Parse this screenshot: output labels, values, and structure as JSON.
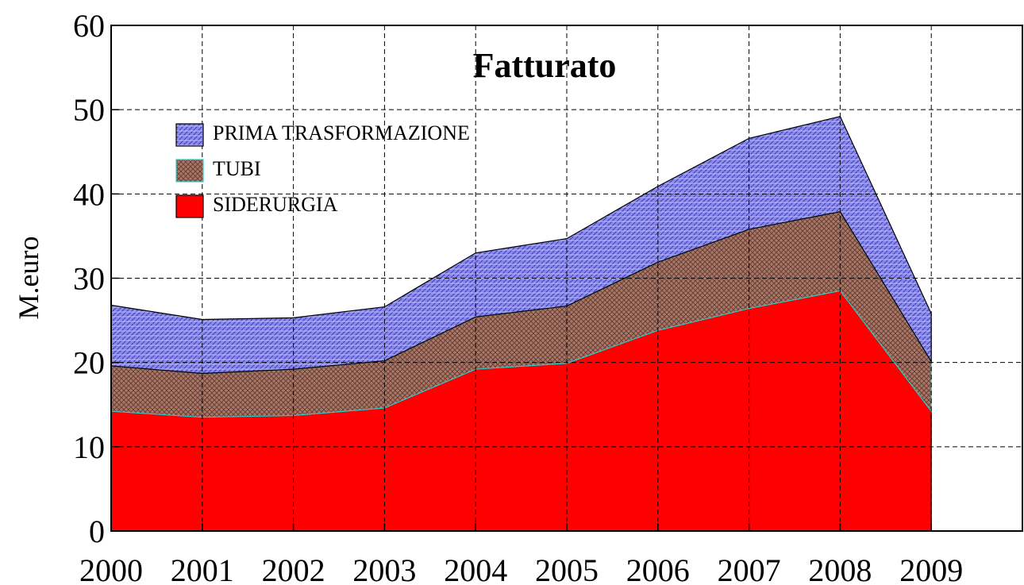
{
  "chart_data": {
    "type": "stacked_area",
    "title": "Fatturato",
    "y_label": "M.euro",
    "x": [
      2000,
      2001,
      2002,
      2003,
      2004,
      2005,
      2006,
      2007,
      2008,
      2009
    ],
    "series": [
      {
        "name": "SIDERURGIA",
        "color": "#ff0000",
        "values": [
          14.2,
          13.5,
          13.7,
          14.6,
          19.2,
          19.9,
          23.8,
          26.4,
          28.5,
          14.2
        ]
      },
      {
        "name": "TUBI",
        "color": "#a87868",
        "values": [
          5.4,
          5.2,
          5.5,
          5.6,
          6.2,
          6.8,
          8.1,
          9.4,
          9.4,
          5.9
        ]
      },
      {
        "name": "PRIMA TRASFORMAZIONE",
        "color": "#8888ee",
        "values": [
          7.2,
          6.4,
          6.1,
          6.4,
          7.6,
          8.0,
          9.0,
          10.8,
          11.3,
          5.7
        ]
      }
    ],
    "xlim": [
      2000,
      2010
    ],
    "xticks": [
      2000,
      2001,
      2002,
      2003,
      2004,
      2005,
      2006,
      2007,
      2008,
      2009
    ],
    "ylim": [
      0,
      60
    ],
    "yticks": [
      0,
      10,
      20,
      30,
      40,
      50,
      60
    ],
    "grid": true,
    "legend": "upper left"
  }
}
